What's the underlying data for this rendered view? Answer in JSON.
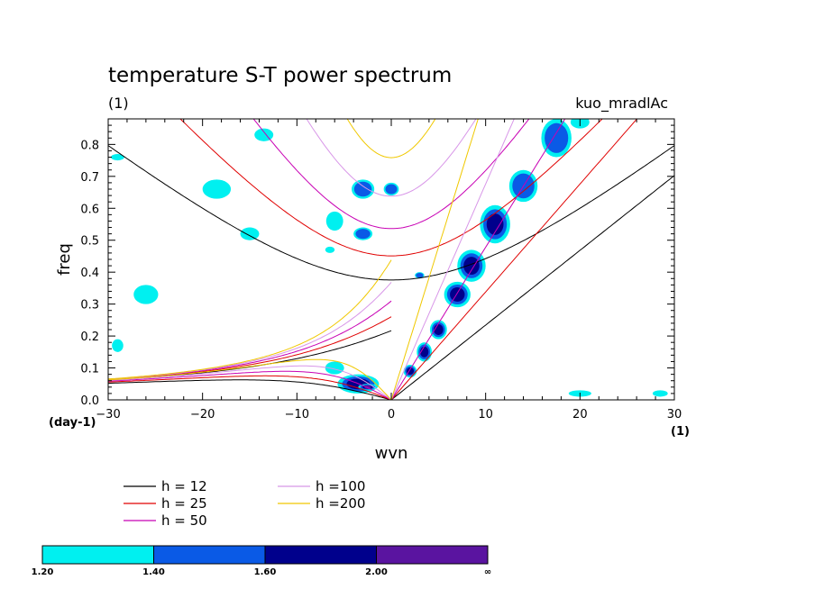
{
  "chart_data": {
    "type": "contour",
    "title": "temperature S-T power spectrum",
    "subtitle_left": "(1)",
    "subtitle_right": "kuo_mradlAc",
    "xlabel": "wvn",
    "ylabel": "freq",
    "x_unit_label": "(1)",
    "y_unit_label": "(day-1)",
    "xlim": [
      -30,
      30
    ],
    "ylim": [
      0,
      0.88
    ],
    "xticks": [
      -30,
      -20,
      -10,
      0,
      10,
      20,
      30
    ],
    "xtick_labels": [
      "−30",
      "−20",
      "−10",
      "0",
      "10",
      "20",
      "30"
    ],
    "yticks": [
      0.0,
      0.1,
      0.2,
      0.3,
      0.4,
      0.5,
      0.6,
      0.7,
      0.8
    ],
    "ytick_labels": [
      "0.0",
      "0.1",
      "0.2",
      "0.3",
      "0.4",
      "0.5",
      "0.6",
      "0.7",
      "0.8"
    ],
    "dispersion_curves": [
      {
        "label": "h = 12",
        "h": 12,
        "color": "#000000"
      },
      {
        "label": "h = 25",
        "h": 25,
        "color": "#e00000"
      },
      {
        "label": "h = 50",
        "h": 50,
        "color": "#c800b4"
      },
      {
        "label": "h =100",
        "h": 100,
        "color": "#d896e8"
      },
      {
        "label": "h =200",
        "h": 200,
        "color": "#f0c800"
      }
    ],
    "colorbar": {
      "levels": [
        "1.20",
        "1.40",
        "1.60",
        "2.00",
        "∞"
      ],
      "colors": [
        "#00f0f0",
        "#0a5ae6",
        "#00008c",
        "#5a14a0"
      ]
    },
    "contour_blobs": [
      {
        "x": 8.5,
        "y": 0.42,
        "rx": 1.5,
        "ry": 0.05,
        "level": 3
      },
      {
        "x": 11.0,
        "y": 0.55,
        "rx": 1.6,
        "ry": 0.06,
        "level": 3
      },
      {
        "x": 14.0,
        "y": 0.67,
        "rx": 1.5,
        "ry": 0.05,
        "level": 2
      },
      {
        "x": 7.0,
        "y": 0.33,
        "rx": 1.4,
        "ry": 0.04,
        "level": 3
      },
      {
        "x": 5.0,
        "y": 0.22,
        "rx": 0.9,
        "ry": 0.03,
        "level": 3
      },
      {
        "x": 3.5,
        "y": 0.15,
        "rx": 0.8,
        "ry": 0.03,
        "level": 3
      },
      {
        "x": 2.0,
        "y": 0.09,
        "rx": 0.7,
        "ry": 0.02,
        "level": 3
      },
      {
        "x": 17.5,
        "y": 0.82,
        "rx": 1.6,
        "ry": 0.06,
        "level": 2
      },
      {
        "x": 20.0,
        "y": 0.87,
        "rx": 1.0,
        "ry": 0.02,
        "level": 1
      },
      {
        "x": -3.5,
        "y": 0.05,
        "rx": 2.2,
        "ry": 0.03,
        "level": 3
      },
      {
        "x": -6.0,
        "y": 0.1,
        "rx": 1.0,
        "ry": 0.02,
        "level": 1
      },
      {
        "x": -3.0,
        "y": 0.66,
        "rx": 1.2,
        "ry": 0.03,
        "level": 2
      },
      {
        "x": 0.0,
        "y": 0.66,
        "rx": 0.8,
        "ry": 0.02,
        "level": 2
      },
      {
        "x": -3.0,
        "y": 0.52,
        "rx": 1.0,
        "ry": 0.02,
        "level": 2
      },
      {
        "x": -6.0,
        "y": 0.56,
        "rx": 0.9,
        "ry": 0.03,
        "level": 1
      },
      {
        "x": -18.5,
        "y": 0.66,
        "rx": 1.5,
        "ry": 0.03,
        "level": 1
      },
      {
        "x": -15.0,
        "y": 0.52,
        "rx": 1.0,
        "ry": 0.02,
        "level": 1
      },
      {
        "x": -29.0,
        "y": 0.76,
        "rx": 0.7,
        "ry": 0.01,
        "level": 1
      },
      {
        "x": -13.5,
        "y": 0.83,
        "rx": 1.0,
        "ry": 0.02,
        "level": 1
      },
      {
        "x": -26.0,
        "y": 0.33,
        "rx": 1.3,
        "ry": 0.03,
        "level": 1
      },
      {
        "x": -29.0,
        "y": 0.17,
        "rx": 0.6,
        "ry": 0.02,
        "level": 1
      },
      {
        "x": 3.0,
        "y": 0.39,
        "rx": 0.5,
        "ry": 0.01,
        "level": 2
      },
      {
        "x": -6.5,
        "y": 0.47,
        "rx": 0.5,
        "ry": 0.01,
        "level": 1
      },
      {
        "x": 20.0,
        "y": 0.02,
        "rx": 1.2,
        "ry": 0.01,
        "level": 1
      },
      {
        "x": 28.5,
        "y": 0.02,
        "rx": 0.8,
        "ry": 0.01,
        "level": 1
      },
      {
        "x": -2.5,
        "y": 0.04,
        "rx": 1.0,
        "ry": 0.01,
        "level": 4
      }
    ]
  }
}
